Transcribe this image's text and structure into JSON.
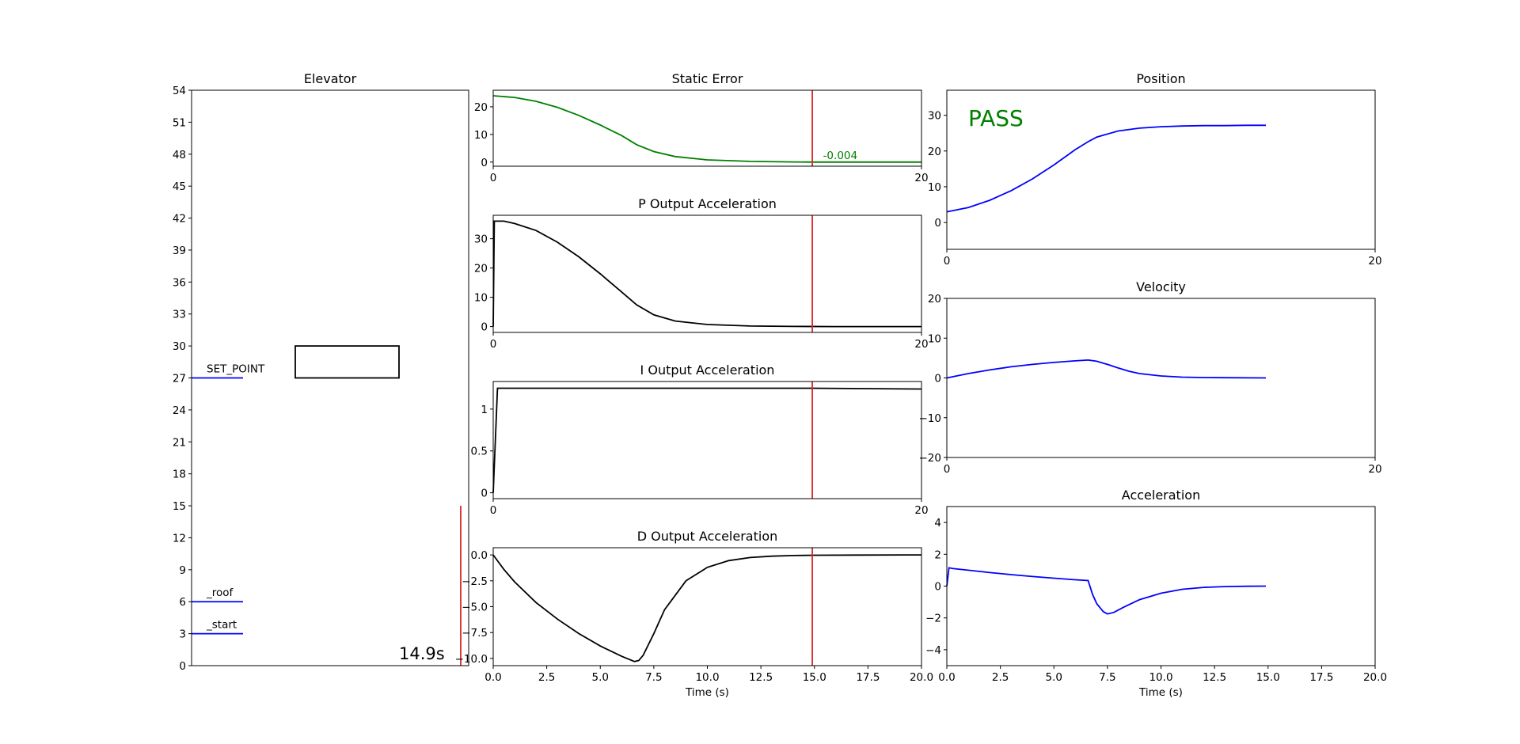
{
  "figure": {
    "status_text": "PASS",
    "time_text": "14.9s",
    "colors": {
      "pass": "#008000",
      "marker": "#d62728",
      "blue": "#0000ff",
      "green": "#008000",
      "black": "#000000"
    }
  },
  "chart_data": [
    {
      "id": "elevator",
      "type": "diagram",
      "title": "Elevator",
      "ylim": [
        0,
        54
      ],
      "yticks": [
        0,
        3,
        6,
        9,
        12,
        15,
        18,
        21,
        24,
        27,
        30,
        33,
        36,
        39,
        42,
        45,
        48,
        51,
        54
      ],
      "markers": [
        {
          "label": "SET_POINT",
          "y": 27
        },
        {
          "label": "_roof",
          "y": 6
        },
        {
          "label": "_start",
          "y": 3
        }
      ],
      "car": {
        "bottom": 27,
        "top": 30
      },
      "time_marker": {
        "y_range": [
          0,
          15
        ]
      },
      "time_label": "14.9s"
    },
    {
      "id": "static_error",
      "type": "line",
      "title": "Static Error",
      "xlim": [
        0,
        20
      ],
      "ylim": [
        -1.5,
        26
      ],
      "xticks": [
        "0",
        "20"
      ],
      "yticks": [
        0,
        10,
        20
      ],
      "x": [
        0,
        1,
        2,
        3,
        4,
        5,
        6,
        6.7,
        7.5,
        8.5,
        10,
        12,
        14,
        15,
        16,
        18,
        20
      ],
      "series": [
        {
          "values": [
            24,
            23.4,
            22,
            19.8,
            16.9,
            13.4,
            9.6,
            6.3,
            3.8,
            2.0,
            0.8,
            0.25,
            0.05,
            0,
            -0.004,
            -0.004,
            -0.004
          ]
        }
      ],
      "vline_x": 14.9,
      "annotation": "-0.004",
      "annotation_x": 15.4,
      "annotation_y": 1.6
    },
    {
      "id": "p_output",
      "type": "line",
      "title": "P Output Acceleration",
      "xlim": [
        0,
        20
      ],
      "ylim": [
        -2,
        38
      ],
      "xticks": [
        "0",
        "20"
      ],
      "yticks": [
        0,
        10,
        20,
        30
      ],
      "x": [
        0,
        0.05,
        0.5,
        1,
        2,
        3,
        4,
        5,
        6,
        6.7,
        7.5,
        8.5,
        10,
        12,
        14,
        16,
        18,
        20
      ],
      "series": [
        {
          "values": [
            0,
            36,
            36,
            35.2,
            32.8,
            28.8,
            23.8,
            18.0,
            11.8,
            7.4,
            4.0,
            1.9,
            0.7,
            0.2,
            0.05,
            0,
            0,
            0
          ]
        }
      ],
      "vline_x": 14.9
    },
    {
      "id": "i_output",
      "type": "line",
      "title": "I Output Acceleration",
      "xlim": [
        0,
        20
      ],
      "ylim": [
        -0.07,
        1.33
      ],
      "xticks": [
        "0",
        "20"
      ],
      "yticks": [
        0.0,
        0.5,
        1.0
      ],
      "x": [
        0,
        0.2,
        5,
        10,
        14.9,
        20
      ],
      "series": [
        {
          "values": [
            0,
            1.25,
            1.25,
            1.25,
            1.25,
            1.24
          ]
        }
      ],
      "vline_x": 14.9
    },
    {
      "id": "d_output",
      "type": "line",
      "title": "D Output Acceleration",
      "xlim": [
        0,
        20
      ],
      "ylim": [
        -10.7,
        0.7
      ],
      "xticks": [
        "0.0",
        "2.5",
        "5.0",
        "7.5",
        "10.0",
        "12.5",
        "15.0",
        "17.5",
        "20.0"
      ],
      "xlabel": "Time (s)",
      "yticks": [
        0.0,
        -2.5,
        -5.0,
        -7.5,
        -10.0
      ],
      "ytick_labels": [
        "0.0",
        "−2.5",
        "−5.0",
        "−7.5",
        "−10.0"
      ],
      "x": [
        0,
        0.5,
        1,
        2,
        3,
        4,
        5,
        6,
        6.6,
        6.8,
        7.0,
        7.5,
        8,
        9,
        10,
        11,
        12,
        13,
        14,
        15,
        17,
        20
      ],
      "series": [
        {
          "values": [
            0,
            -1.4,
            -2.6,
            -4.6,
            -6.2,
            -7.6,
            -8.8,
            -9.8,
            -10.3,
            -10.2,
            -9.7,
            -7.6,
            -5.3,
            -2.5,
            -1.2,
            -0.55,
            -0.25,
            -0.12,
            -0.06,
            -0.03,
            -0.01,
            0
          ]
        }
      ],
      "vline_x": 14.9
    },
    {
      "id": "position",
      "type": "line",
      "title": "Position",
      "xlim": [
        0,
        20
      ],
      "ylim": [
        -7.5,
        37
      ],
      "xticks": [
        "0",
        "20"
      ],
      "yticks": [
        0,
        10,
        20,
        30
      ],
      "x": [
        0,
        1,
        2,
        3,
        4,
        5,
        6,
        6.6,
        7,
        8,
        9,
        10,
        11,
        12,
        13,
        14,
        14.9
      ],
      "series": [
        {
          "values": [
            3,
            4.2,
            6.2,
            8.9,
            12.2,
            16.1,
            20.4,
            22.6,
            23.9,
            25.6,
            26.4,
            26.8,
            27.0,
            27.1,
            27.1,
            27.2,
            27.2
          ]
        }
      ],
      "status": "PASS"
    },
    {
      "id": "velocity",
      "type": "line",
      "title": "Velocity",
      "xlim": [
        0,
        20
      ],
      "ylim": [
        -20,
        20
      ],
      "xticks": [
        "0",
        "20"
      ],
      "yticks": [
        -20,
        -10,
        0,
        10,
        20
      ],
      "ytick_labels": [
        "−20",
        "−10",
        "0",
        "10",
        "20"
      ],
      "x": [
        0,
        1,
        2,
        3,
        4,
        5,
        6,
        6.6,
        7,
        7.5,
        8,
        8.5,
        9,
        10,
        11,
        12,
        13,
        14.9
      ],
      "series": [
        {
          "values": [
            0,
            1.1,
            2.0,
            2.8,
            3.4,
            3.9,
            4.3,
            4.5,
            4.2,
            3.4,
            2.5,
            1.7,
            1.1,
            0.5,
            0.2,
            0.1,
            0.05,
            0.0
          ]
        }
      ]
    },
    {
      "id": "acceleration",
      "type": "line",
      "title": "Acceleration",
      "xlim": [
        0,
        20
      ],
      "ylim": [
        -5,
        5
      ],
      "xticks": [
        "0.0",
        "2.5",
        "5.0",
        "7.5",
        "10.0",
        "12.5",
        "15.0",
        "17.5",
        "20.0"
      ],
      "xlabel": "Time (s)",
      "yticks": [
        -4,
        -2,
        0,
        2,
        4
      ],
      "ytick_labels": [
        "−4",
        "−2",
        "0",
        "2",
        "4"
      ],
      "x": [
        0,
        0.1,
        0.3,
        1,
        2,
        3,
        4,
        5,
        6,
        6.6,
        6.8,
        7.0,
        7.3,
        7.5,
        7.8,
        8.3,
        9,
        10,
        11,
        12,
        13,
        14,
        14.9
      ],
      "series": [
        {
          "values": [
            0,
            1.15,
            1.1,
            1.0,
            0.85,
            0.72,
            0.6,
            0.5,
            0.4,
            0.35,
            -0.5,
            -1.1,
            -1.6,
            -1.75,
            -1.65,
            -1.3,
            -0.85,
            -0.45,
            -0.2,
            -0.08,
            -0.03,
            -0.01,
            0
          ]
        }
      ]
    }
  ]
}
